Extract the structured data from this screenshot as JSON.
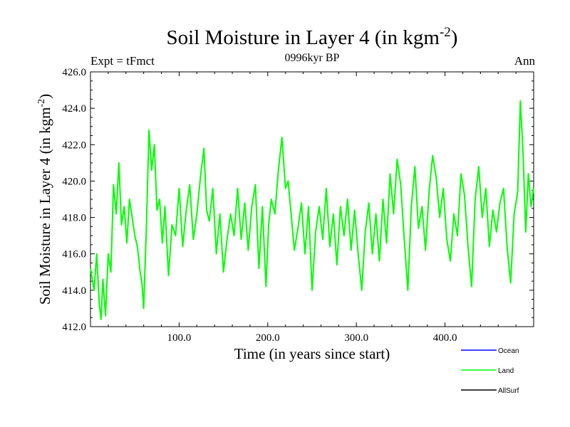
{
  "chart_data": {
    "type": "line",
    "title": "Soil Moisture in Layer 4 (in kgm",
    "title_exp": "-2",
    "title_close": ")",
    "subtitle": "0996kyr BP",
    "left_label": "Expt = tFmct",
    "right_label": "Ann",
    "xlabel": "Time (in years since start)",
    "ylabel": "Soil Moisture in Layer 4 (in kgm",
    "ylabel_exp": "-2",
    "ylabel_close": ")",
    "xlim": [
      0,
      500
    ],
    "ylim": [
      412,
      426
    ],
    "x_ticks": [
      100,
      200,
      300,
      400
    ],
    "x_tick_labels": [
      "100.0",
      "200.0",
      "300.0",
      "400.0"
    ],
    "y_ticks": [
      412,
      414,
      416,
      418,
      420,
      422,
      424,
      426
    ],
    "y_tick_labels": [
      "412.0",
      "414.0",
      "416.0",
      "418.0",
      "420.0",
      "422.0",
      "424.0",
      "426.0"
    ],
    "legend": [
      {
        "label": "Ocean",
        "color": "#0000ff"
      },
      {
        "label": "Land",
        "color": "#00ff00"
      },
      {
        "label": "AllSurf",
        "color": "#000000"
      }
    ],
    "series": [
      {
        "name": "Land",
        "color": "#00ff00",
        "x": [
          0,
          4,
          7,
          10,
          12,
          14,
          17,
          20,
          23,
          26,
          29,
          32,
          35,
          38,
          41,
          44,
          47,
          50,
          53,
          56,
          58,
          60,
          63,
          66,
          69,
          72,
          75,
          78,
          81,
          84,
          88,
          92,
          96,
          100,
          104,
          108,
          112,
          116,
          120,
          124,
          128,
          131,
          134,
          138,
          142,
          146,
          150,
          154,
          158,
          162,
          166,
          170,
          174,
          178,
          182,
          186,
          190,
          194,
          198,
          201,
          204,
          208,
          212,
          216,
          220,
          223,
          226,
          230,
          234,
          238,
          242,
          246,
          250,
          254,
          258,
          262,
          266,
          270,
          274,
          278,
          282,
          286,
          290,
          294,
          298,
          302,
          306,
          310,
          314,
          318,
          322,
          326,
          330,
          334,
          338,
          342,
          346,
          350,
          354,
          358,
          362,
          366,
          370,
          374,
          378,
          382,
          386,
          390,
          394,
          398,
          402,
          406,
          410,
          414,
          418,
          422,
          426,
          430,
          434,
          438,
          442,
          446,
          450,
          454,
          458,
          462,
          466,
          470,
          474,
          478,
          482,
          485,
          488,
          491,
          494,
          497,
          500
        ],
        "values": [
          415.2,
          414.0,
          416.0,
          413.2,
          412.4,
          414.6,
          412.6,
          416.0,
          415.0,
          419.8,
          418.2,
          421.0,
          417.6,
          418.6,
          416.6,
          419.0,
          418.0,
          417.0,
          416.4,
          415.0,
          414.4,
          413.0,
          417.4,
          422.8,
          420.6,
          422.0,
          418.4,
          419.0,
          416.6,
          418.6,
          414.8,
          417.6,
          417.0,
          419.6,
          416.4,
          418.4,
          419.8,
          416.8,
          418.2,
          420.2,
          421.8,
          418.4,
          417.8,
          419.6,
          416.0,
          418.2,
          415.0,
          416.8,
          418.2,
          417.0,
          419.6,
          416.8,
          418.8,
          416.2,
          418.6,
          419.8,
          415.2,
          418.6,
          414.2,
          417.6,
          419.0,
          418.2,
          420.6,
          422.4,
          419.6,
          420.0,
          418.4,
          416.2,
          417.4,
          418.8,
          416.0,
          418.6,
          414.0,
          417.2,
          418.6,
          416.8,
          419.6,
          416.4,
          418.2,
          415.4,
          418.6,
          417.0,
          419.0,
          416.2,
          418.4,
          416.0,
          414.0,
          417.2,
          418.8,
          416.0,
          418.2,
          415.6,
          419.0,
          416.6,
          420.4,
          418.2,
          421.2,
          419.8,
          416.8,
          414.0,
          418.6,
          420.8,
          417.4,
          418.6,
          416.2,
          419.4,
          421.4,
          420.2,
          418.0,
          419.6,
          416.8,
          415.6,
          418.2,
          417.0,
          420.4,
          419.2,
          416.4,
          414.2,
          419.0,
          420.8,
          418.0,
          419.6,
          416.4,
          418.4,
          417.2,
          418.8,
          419.6,
          416.4,
          414.4,
          418.2,
          419.4,
          424.4,
          421.6,
          417.2,
          420.4,
          418.6,
          419.6
        ]
      }
    ]
  }
}
